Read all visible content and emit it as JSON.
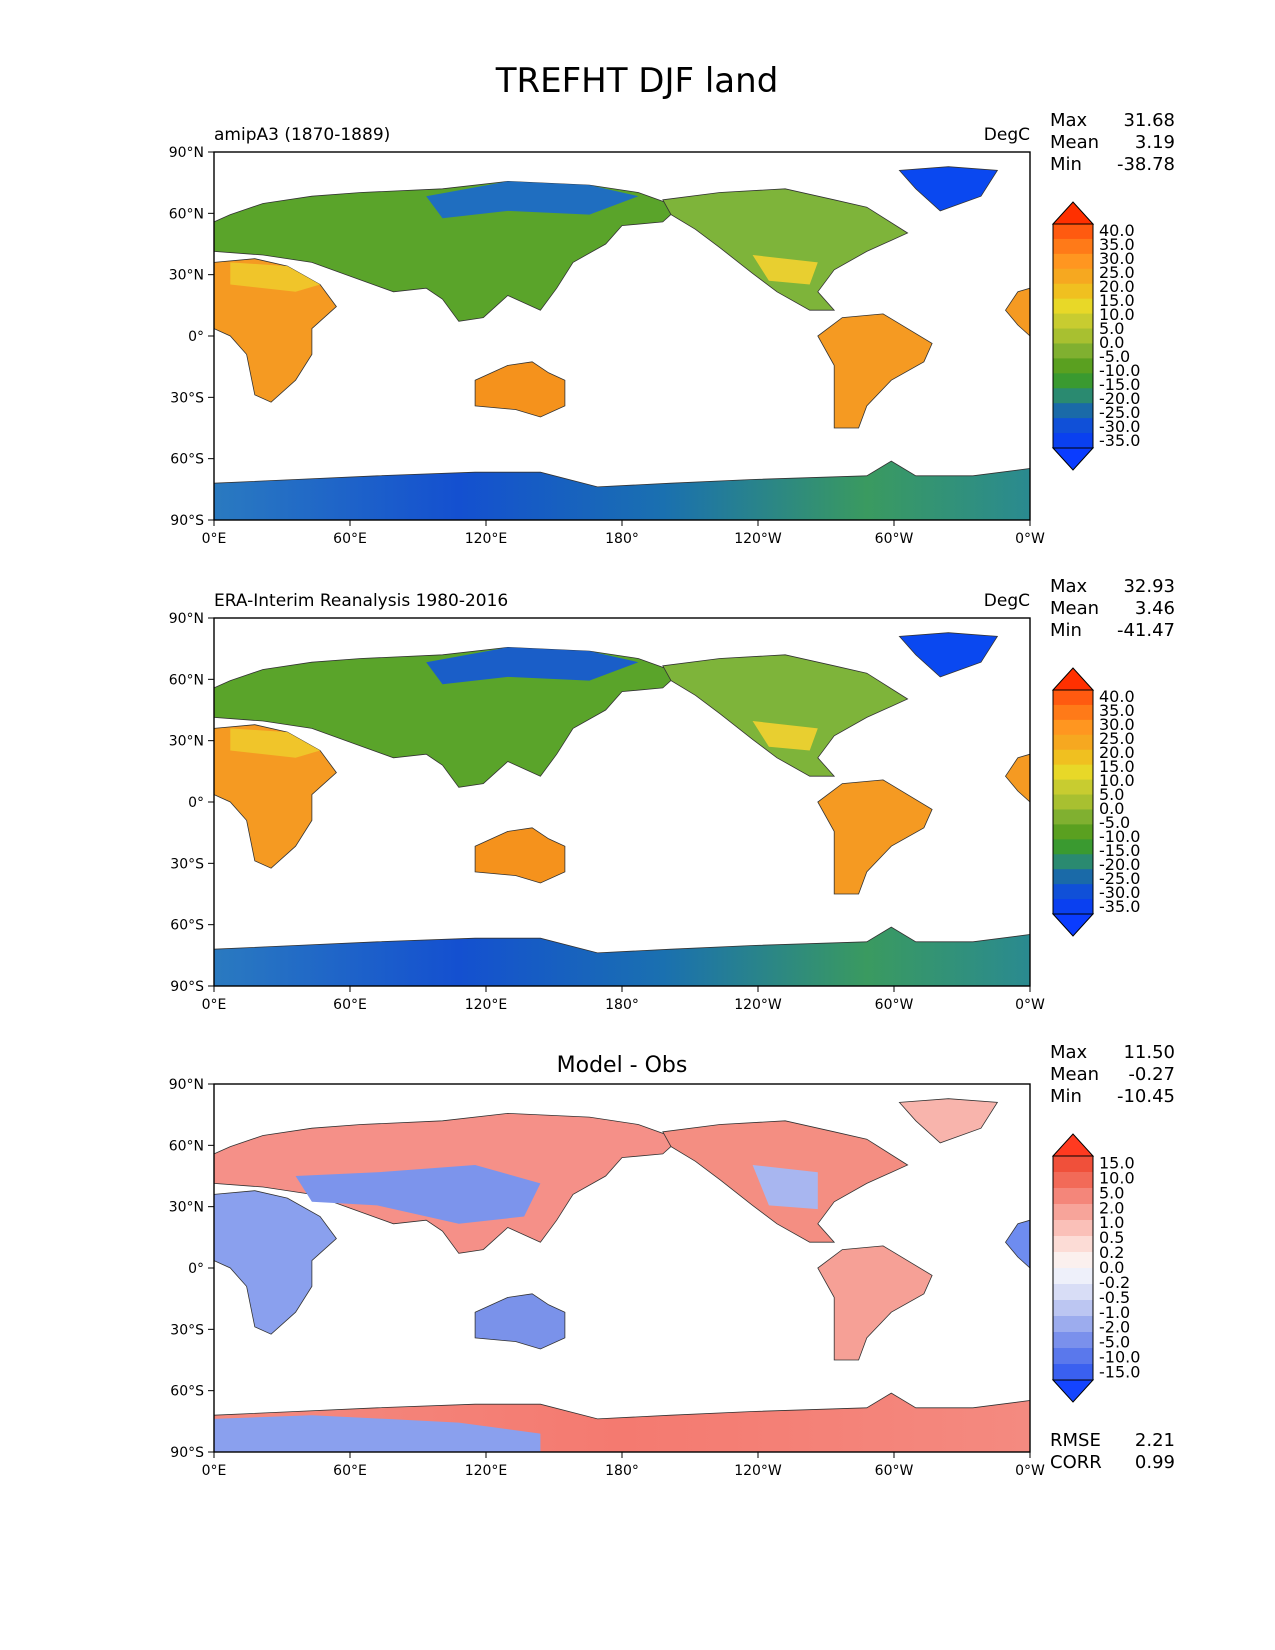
{
  "title": "TREFHT DJF land",
  "panels": [
    {
      "left_label": "amipA3 (1870-1889)",
      "center_label": "",
      "units": "DegC",
      "stats": [
        {
          "label": "Max",
          "value": "31.68"
        },
        {
          "label": "Mean",
          "value": "3.19"
        },
        {
          "label": "Min",
          "value": "-38.78"
        }
      ],
      "colorbar": "abs",
      "extra_stats": []
    },
    {
      "left_label": "ERA-Interim Reanalysis 1980-2016",
      "center_label": "",
      "units": "DegC",
      "stats": [
        {
          "label": "Max",
          "value": "32.93"
        },
        {
          "label": "Mean",
          "value": "3.46"
        },
        {
          "label": "Min",
          "value": "-41.47"
        }
      ],
      "colorbar": "abs",
      "extra_stats": []
    },
    {
      "left_label": "",
      "center_label": "Model - Obs",
      "units": "",
      "stats": [
        {
          "label": "Max",
          "value": "11.50"
        },
        {
          "label": "Mean",
          "value": "-0.27"
        },
        {
          "label": "Min",
          "value": "-10.45"
        }
      ],
      "colorbar": "diff",
      "extra_stats": [
        {
          "label": "RMSE",
          "value": "2.21"
        },
        {
          "label": "CORR",
          "value": "0.99"
        }
      ]
    }
  ],
  "axes": {
    "lat_ticks": [
      "90°N",
      "60°N",
      "30°N",
      "0°",
      "30°S",
      "60°S",
      "90°S"
    ],
    "lon_ticks": [
      "0°E",
      "60°E",
      "120°E",
      "180°",
      "120°W",
      "60°W",
      "0°W"
    ]
  },
  "colorbars": {
    "abs": {
      "ticks": [
        "40.0",
        "35.0",
        "30.0",
        "25.0",
        "20.0",
        "15.0",
        "10.0",
        "5.0",
        "0.0",
        "-5.0",
        "-10.0",
        "-15.0",
        "-20.0",
        "-25.0",
        "-30.0",
        "-35.0"
      ],
      "colors": [
        "#ff3000",
        "#ff5a10",
        "#ff7a18",
        "#ff9620",
        "#f6a820",
        "#f0c020",
        "#e8d828",
        "#c8cc30",
        "#a8c030",
        "#80b030",
        "#5aa020",
        "#3a9a30",
        "#2a8a70",
        "#1a6aa8",
        "#1050d8",
        "#0a40f0",
        "#0a3cff"
      ],
      "min_color": "#0a3cff",
      "max_color": "#ff3000"
    },
    "diff": {
      "ticks": [
        "15.0",
        "10.0",
        "5.0",
        "2.0",
        "1.0",
        "0.5",
        "0.2",
        "0.0",
        "-0.2",
        "-0.5",
        "-1.0",
        "-2.0",
        "-5.0",
        "-10.0",
        "-15.0"
      ],
      "colors": [
        "#ff3a20",
        "#f0503a",
        "#f26a58",
        "#f4867a",
        "#f7a49a",
        "#fac0b8",
        "#fcdcd6",
        "#fbf0ee",
        "#eef0fa",
        "#d8ddf6",
        "#bcc6f2",
        "#9cacee",
        "#7a90ec",
        "#5a78ec",
        "#3a60f0",
        "#1444ff"
      ],
      "min_color": "#1444ff",
      "max_color": "#ff3a20"
    }
  }
}
